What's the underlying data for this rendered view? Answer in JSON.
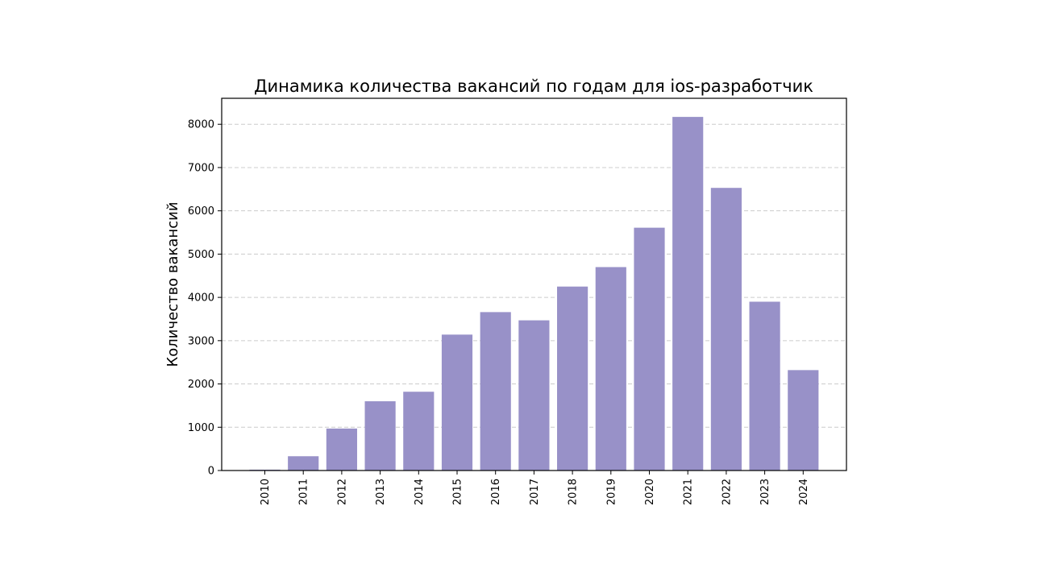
{
  "chart_data": {
    "type": "bar",
    "title": "Динамика количества вакансий по годам для ios-разработчик",
    "xlabel": "",
    "ylabel": "Количество вакансий",
    "categories": [
      "2010",
      "2011",
      "2012",
      "2013",
      "2014",
      "2015",
      "2016",
      "2017",
      "2018",
      "2019",
      "2020",
      "2021",
      "2022",
      "2023",
      "2024"
    ],
    "values": [
      20,
      330,
      970,
      1600,
      1820,
      3140,
      3660,
      3470,
      4250,
      4700,
      5610,
      8170,
      6530,
      3900,
      2320
    ],
    "ylim": [
      0,
      8600
    ],
    "yticks": [
      0,
      1000,
      2000,
      3000,
      4000,
      5000,
      6000,
      7000,
      8000
    ],
    "grid": true,
    "grid_axis": "y",
    "bar_color": "#9891c8",
    "legend": false
  }
}
